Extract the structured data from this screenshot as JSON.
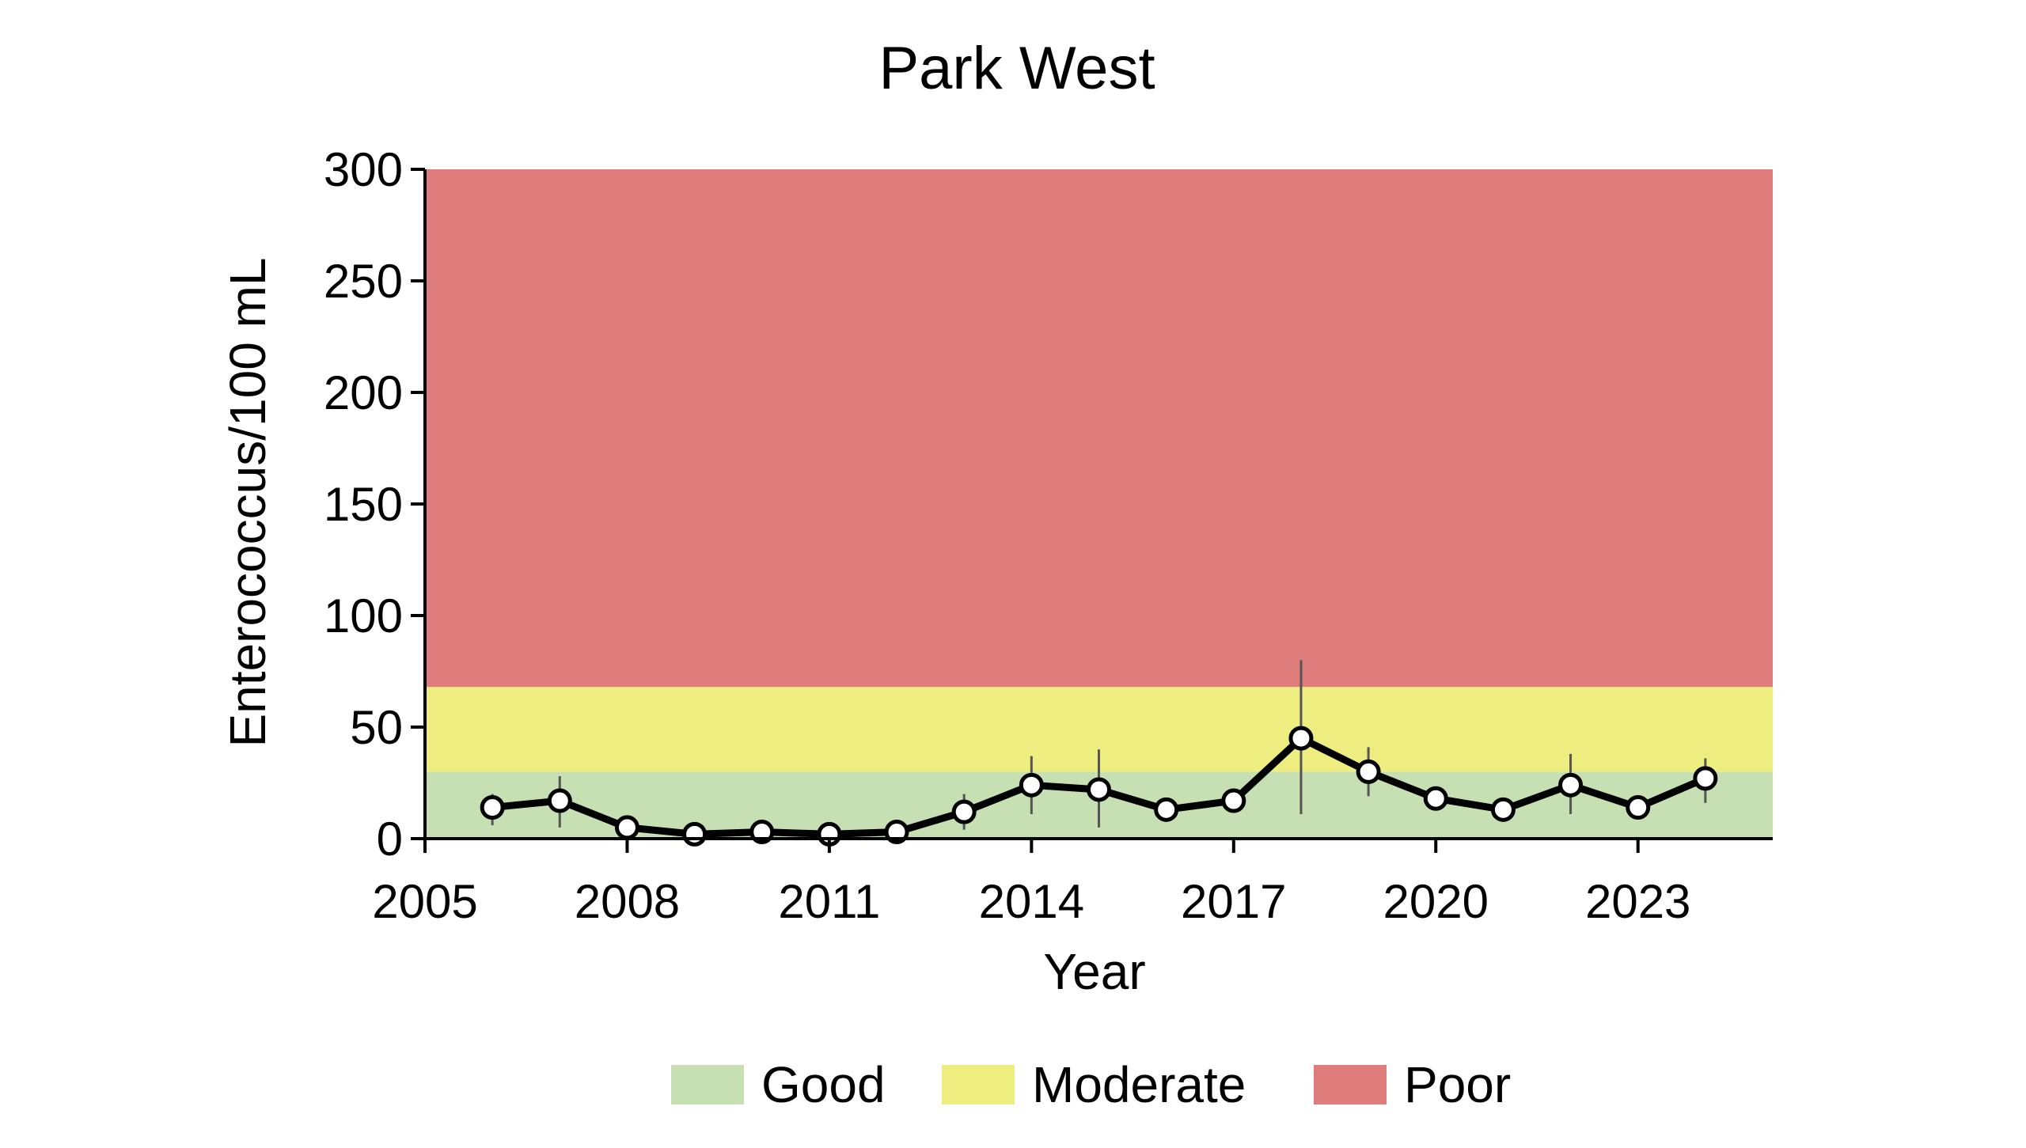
{
  "chart_data": {
    "type": "line",
    "title": "Park West",
    "xlabel": "Year",
    "ylabel": "Enterococcus/100 mL",
    "xlim": [
      2005,
      2025
    ],
    "ylim": [
      0,
      300
    ],
    "xticks": [
      2005,
      2008,
      2011,
      2014,
      2017,
      2020,
      2023
    ],
    "yticks": [
      0,
      50,
      100,
      150,
      200,
      250,
      300
    ],
    "grid": false,
    "legend_position": "bottom",
    "bands": [
      {
        "name": "Good",
        "from": 0,
        "to": 30,
        "color": "#c6e0b4"
      },
      {
        "name": "Moderate",
        "from": 30,
        "to": 68,
        "color": "#eeee80"
      },
      {
        "name": "Poor",
        "from": 68,
        "to": 300,
        "color": "#df7c7c"
      }
    ],
    "series": [
      {
        "x": [
          2006,
          2007,
          2008,
          2009,
          2010,
          2011,
          2012,
          2013,
          2014,
          2015,
          2016,
          2017,
          2018,
          2019,
          2020,
          2021,
          2022,
          2023,
          2024
        ],
        "y": [
          14,
          17,
          5,
          2,
          3,
          2,
          3,
          12,
          24,
          22,
          13,
          17,
          45,
          30,
          18,
          13,
          24,
          14,
          27
        ],
        "error_low": [
          6,
          5,
          3,
          1,
          1,
          1,
          2,
          4,
          11,
          5,
          11,
          16,
          11,
          19,
          15,
          12,
          11,
          12,
          16
        ],
        "error_high": [
          20,
          28,
          9,
          3,
          5,
          3,
          4,
          20,
          37,
          40,
          16,
          18,
          80,
          41,
          21,
          16,
          38,
          16,
          36
        ],
        "line_color": "#000000",
        "marker_fill": "#ffffff"
      }
    ]
  }
}
